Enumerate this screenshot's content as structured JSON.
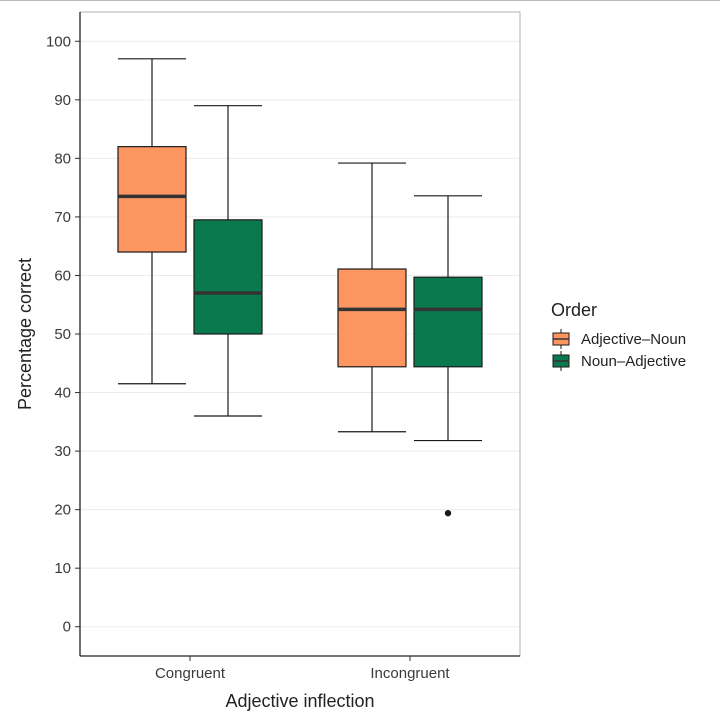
{
  "chart_data": {
    "type": "boxplot",
    "xlabel": "Adjective inflection",
    "ylabel": "Percentage correct",
    "categories": [
      "Congruent",
      "Incongruent"
    ],
    "ylim": [
      -5,
      105
    ],
    "yticks": [
      0,
      10,
      20,
      30,
      40,
      50,
      60,
      70,
      80,
      90,
      100
    ],
    "grid": "horizontal",
    "legend": {
      "title": "Order",
      "placement": "right"
    },
    "series": [
      {
        "name": "Adjective–Noun",
        "color": "#fc9560",
        "boxes": [
          {
            "category": "Congruent",
            "min": 41.5,
            "q1": 64,
            "median": 73.5,
            "q3": 82,
            "max": 97,
            "outliers": []
          },
          {
            "category": "Incongruent",
            "min": 33.3,
            "q1": 44.4,
            "median": 54.2,
            "q3": 61.1,
            "max": 79.2,
            "outliers": []
          }
        ]
      },
      {
        "name": "Noun–Adjective",
        "color": "#0a7a4e",
        "boxes": [
          {
            "category": "Congruent",
            "min": 36,
            "q1": 50,
            "median": 57,
            "q3": 69.5,
            "max": 89,
            "outliers": []
          },
          {
            "category": "Incongruent",
            "min": 31.8,
            "q1": 44.4,
            "median": 54.2,
            "q3": 59.7,
            "max": 73.6,
            "outliers": [
              19.4
            ]
          }
        ]
      }
    ]
  }
}
